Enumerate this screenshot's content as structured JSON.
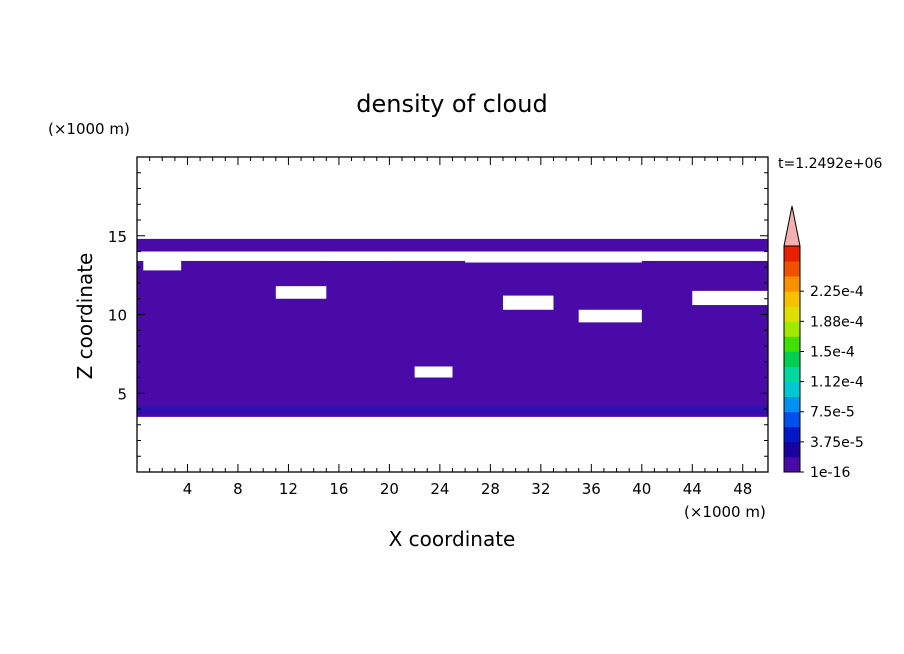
{
  "chart_data": {
    "type": "heatmap",
    "title": "density of cloud",
    "xlabel": "X coordinate",
    "ylabel": "Z coordinate",
    "x_unit": "(×1000 m)",
    "y_unit": "(×1000 m)",
    "time_label": "t=1.2492e+06",
    "xlim": [
      0,
      50
    ],
    "ylim": [
      0,
      20
    ],
    "x_ticks": [
      4,
      8,
      12,
      16,
      20,
      24,
      28,
      32,
      36,
      40,
      44,
      48
    ],
    "y_ticks": [
      5,
      10,
      15
    ],
    "colorbar": {
      "labels": [
        "1e-16",
        "3.75e-5",
        "7.5e-5",
        "1.12e-4",
        "1.5e-4",
        "1.88e-4",
        "2.25e-4"
      ],
      "colors": [
        "#4a0aa8",
        "#1a00a0",
        "#0018c8",
        "#0050f0",
        "#0090f0",
        "#00c8d0",
        "#00d8a0",
        "#00d050",
        "#40e000",
        "#a0e800",
        "#e0e000",
        "#f8c000",
        "#f89000",
        "#f05000",
        "#e82000",
        "#f4b0b0"
      ],
      "extend_color": "#f4b0b0"
    },
    "fill_color": "#4a0aa8",
    "dense_color": "#3010b0",
    "regions": {
      "main_body": {
        "z_bottom": 3.5,
        "z_top": 12.5
      },
      "upper_bands": [
        {
          "x": [
            0,
            50
          ],
          "z": [
            14.0,
            14.8
          ]
        },
        {
          "x": [
            0,
            50
          ],
          "z": [
            12.0,
            13.4
          ]
        }
      ],
      "gaps": [
        {
          "x": [
            0.5,
            3.5
          ],
          "z": [
            12.8,
            13.6
          ]
        },
        {
          "x": [
            11,
            15
          ],
          "z": [
            11.0,
            11.8
          ]
        },
        {
          "x": [
            22,
            25
          ],
          "z": [
            6.0,
            6.7
          ]
        },
        {
          "x": [
            29,
            33
          ],
          "z": [
            10.3,
            11.2
          ]
        },
        {
          "x": [
            35,
            40
          ],
          "z": [
            9.5,
            10.3
          ]
        },
        {
          "x": [
            44,
            50
          ],
          "z": [
            10.6,
            11.5
          ]
        },
        {
          "x": [
            15,
            20
          ],
          "z": [
            13.4,
            13.9
          ]
        },
        {
          "x": [
            26,
            40
          ],
          "z": [
            13.3,
            14.0
          ]
        }
      ],
      "dense_strip": {
        "x": [
          0,
          50
        ],
        "z": [
          3.7,
          4.2
        ]
      }
    }
  }
}
